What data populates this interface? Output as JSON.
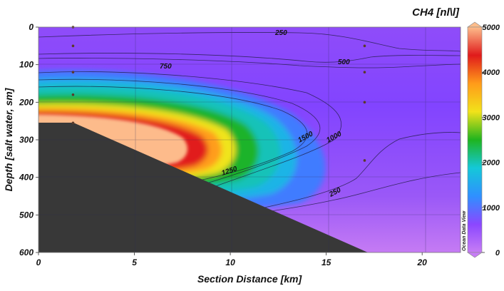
{
  "chart_data": {
    "type": "heatmap",
    "variable": "CH4 [nl\\l]",
    "colorbar_title": "CH4 [nl\\l]",
    "xlabel": "Section Distance [km]",
    "ylabel": "Depth [salt water, sm]",
    "xlim": [
      0,
      22
    ],
    "ylim": [
      600,
      0
    ],
    "x_ticks": [
      "0",
      "5",
      "10",
      "15",
      "20"
    ],
    "y_ticks": [
      "0",
      "100",
      "200",
      "300",
      "400",
      "500",
      "600"
    ],
    "colorbar": {
      "range": [
        0,
        5000
      ],
      "ticks": [
        "0",
        "1000",
        "2000",
        "3000",
        "4000",
        "5000"
      ],
      "colors": [
        "#c77df5",
        "#8b47ff",
        "#2f90ff",
        "#14c8d8",
        "#1fb41f",
        "#f2e21a",
        "#ff9b1a",
        "#e01b1b",
        "#fdbd8b"
      ]
    },
    "contour_levels": [
      250,
      500,
      750,
      1000,
      1250,
      1500
    ],
    "contour_labels": [
      "250",
      "750",
      "500",
      "1500",
      "1000",
      "1250",
      "250"
    ],
    "stations": [
      {
        "distance_km": 1.8,
        "depths_m": [
          0,
          50,
          120,
          180,
          255
        ]
      },
      {
        "distance_km": 17.0,
        "depths_m": [
          50,
          120,
          200,
          355
        ]
      }
    ],
    "seafloor": [
      [
        0,
        255
      ],
      [
        1.8,
        255
      ],
      [
        17.0,
        600
      ]
    ],
    "max_plume": {
      "depth_m": 260,
      "distance_km_extent": [
        0,
        12
      ],
      "value": 5000
    },
    "watermark": "Ocean Data View",
    "grid": true
  }
}
